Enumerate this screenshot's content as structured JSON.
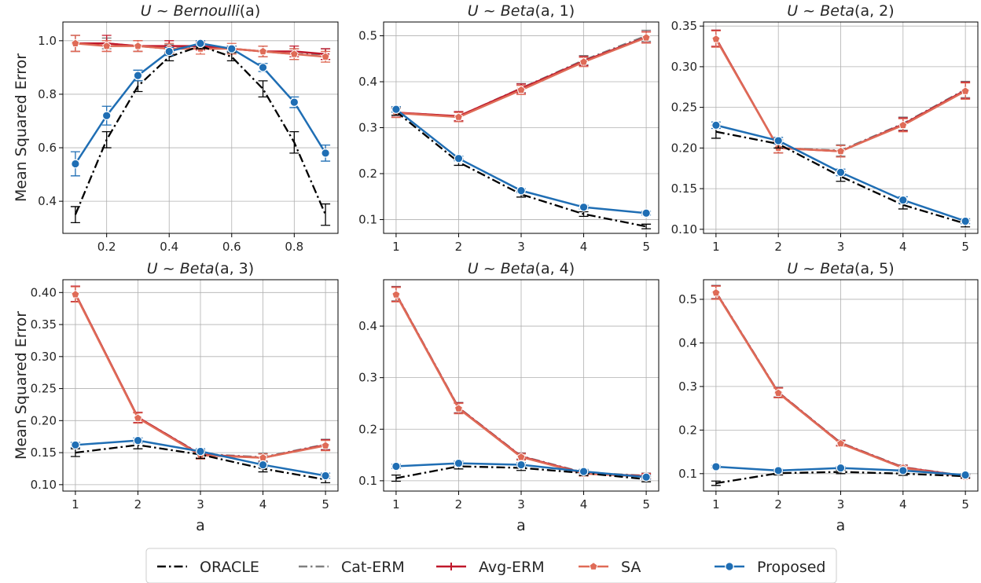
{
  "legend": {
    "placement": "bottom-center",
    "entries": [
      {
        "name": "ORACLE",
        "color": "#000000",
        "style": "dashdot",
        "marker": "none"
      },
      {
        "name": "Cat-ERM",
        "color": "#808080",
        "style": "dashdot",
        "marker": "none"
      },
      {
        "name": "Avg-ERM",
        "color": "#c0182b",
        "style": "solid",
        "marker": "plus"
      },
      {
        "name": "SA",
        "color": "#df6b57",
        "style": "solid",
        "marker": "pentagon"
      },
      {
        "name": "Proposed",
        "color": "#1f6eb4",
        "style": "solid",
        "marker": "circle"
      }
    ]
  },
  "chart_data": [
    {
      "type": "line",
      "title": "U ~ Bernoulli(a)",
      "title_parts": {
        "lhs": "U",
        "op": " ~ ",
        "dist": "Bernoulli",
        "args": "(a)"
      },
      "xlabel": "",
      "ylabel": "Mean Squared Error",
      "grid": true,
      "xlim": [
        0.06,
        0.94
      ],
      "ylim": [
        0.28,
        1.07
      ],
      "xticks": [
        0.2,
        0.4,
        0.6,
        0.8
      ],
      "xtick_labels": [
        "0.2",
        "0.4",
        "0.6",
        "0.8"
      ],
      "yticks": [
        0.4,
        0.6,
        0.8,
        1.0
      ],
      "ytick_labels": [
        "0.4",
        "0.6",
        "0.8",
        "1.0"
      ],
      "x": [
        0.1,
        0.2,
        0.3,
        0.4,
        0.5,
        0.6,
        0.7,
        0.8,
        0.9
      ],
      "series": [
        {
          "name": "ORACLE",
          "values": [
            0.35,
            0.63,
            0.83,
            0.94,
            0.98,
            0.94,
            0.82,
            0.62,
            0.35
          ],
          "err": [
            0.03,
            0.03,
            0.02,
            0.015,
            0.01,
            0.015,
            0.03,
            0.04,
            0.04
          ]
        },
        {
          "name": "Cat-ERM",
          "values": [
            0.99,
            0.99,
            0.98,
            0.97,
            0.98,
            0.97,
            0.96,
            0.95,
            0.95
          ],
          "err": [
            0.03,
            0.02,
            0.02,
            0.015,
            0.01,
            0.01,
            0.02,
            0.02,
            0.02
          ]
        },
        {
          "name": "Avg-ERM",
          "values": [
            0.99,
            0.99,
            0.98,
            0.98,
            0.98,
            0.97,
            0.96,
            0.96,
            0.95
          ],
          "err": [
            0.03,
            0.03,
            0.02,
            0.02,
            0.015,
            0.01,
            0.02,
            0.02,
            0.02
          ]
        },
        {
          "name": "SA",
          "values": [
            0.99,
            0.98,
            0.98,
            0.97,
            0.97,
            0.97,
            0.96,
            0.95,
            0.94
          ],
          "err": [
            0.03,
            0.02,
            0.02,
            0.02,
            0.02,
            0.02,
            0.02,
            0.02,
            0.02
          ]
        },
        {
          "name": "Proposed",
          "values": [
            0.54,
            0.72,
            0.87,
            0.96,
            0.99,
            0.97,
            0.9,
            0.77,
            0.58
          ],
          "err": [
            0.045,
            0.035,
            0.02,
            0.015,
            0.01,
            0.01,
            0.015,
            0.02,
            0.03
          ]
        }
      ]
    },
    {
      "type": "line",
      "title": "U ~ Beta(a, 1)",
      "title_parts": {
        "lhs": "U",
        "op": " ~ ",
        "dist": "Beta",
        "args": "(a, 1)"
      },
      "xlabel": "",
      "ylabel": "",
      "grid": true,
      "xlim": [
        0.8,
        5.2
      ],
      "ylim": [
        0.07,
        0.53
      ],
      "xticks": [
        1,
        2,
        3,
        4,
        5
      ],
      "xtick_labels": [
        "1",
        "2",
        "3",
        "4",
        "5"
      ],
      "yticks": [
        0.1,
        0.2,
        0.3,
        0.4,
        0.5
      ],
      "ytick_labels": [
        "0.1",
        "0.2",
        "0.3",
        "0.4",
        "0.5"
      ],
      "x": [
        1,
        2,
        3,
        4,
        5
      ],
      "series": [
        {
          "name": "ORACLE",
          "values": [
            0.335,
            0.225,
            0.155,
            0.112,
            0.085
          ],
          "err": [
            0.008,
            0.007,
            0.006,
            0.005,
            0.005
          ]
        },
        {
          "name": "Cat-ERM",
          "values": [
            0.333,
            0.325,
            0.386,
            0.447,
            0.5
          ],
          "err": [
            0.01,
            0.01,
            0.01,
            0.01,
            0.012
          ]
        },
        {
          "name": "Avg-ERM",
          "values": [
            0.333,
            0.325,
            0.385,
            0.445,
            0.497
          ],
          "err": [
            0.01,
            0.01,
            0.01,
            0.01,
            0.012
          ]
        },
        {
          "name": "SA",
          "values": [
            0.332,
            0.323,
            0.382,
            0.443,
            0.496
          ],
          "err": [
            0.01,
            0.01,
            0.01,
            0.01,
            0.012
          ]
        },
        {
          "name": "Proposed",
          "values": [
            0.34,
            0.233,
            0.163,
            0.127,
            0.114
          ],
          "err": [
            0.006,
            0.005,
            0.004,
            0.004,
            0.004
          ]
        }
      ]
    },
    {
      "type": "line",
      "title": "U ~ Beta(a, 2)",
      "title_parts": {
        "lhs": "U",
        "op": " ~ ",
        "dist": "Beta",
        "args": "(a, 2)"
      },
      "xlabel": "",
      "ylabel": "",
      "grid": true,
      "xlim": [
        0.8,
        5.2
      ],
      "ylim": [
        0.095,
        0.355
      ],
      "xticks": [
        1,
        2,
        3,
        4,
        5
      ],
      "xtick_labels": [
        "1",
        "2",
        "3",
        "4",
        "5"
      ],
      "yticks": [
        0.1,
        0.15,
        0.2,
        0.25,
        0.3,
        0.35
      ],
      "ytick_labels": [
        "0.10",
        "0.15",
        "0.20",
        "0.25",
        "0.30",
        "0.35"
      ],
      "x": [
        1,
        2,
        3,
        4,
        5
      ],
      "series": [
        {
          "name": "ORACLE",
          "values": [
            0.22,
            0.205,
            0.165,
            0.13,
            0.107
          ],
          "err": [
            0.008,
            0.005,
            0.006,
            0.005,
            0.004
          ]
        },
        {
          "name": "Cat-ERM",
          "values": [
            0.335,
            0.2,
            0.197,
            0.23,
            0.272
          ],
          "err": [
            0.01,
            0.006,
            0.007,
            0.008,
            0.01
          ]
        },
        {
          "name": "Avg-ERM",
          "values": [
            0.335,
            0.2,
            0.196,
            0.229,
            0.271
          ],
          "err": [
            0.01,
            0.006,
            0.007,
            0.008,
            0.01
          ]
        },
        {
          "name": "SA",
          "values": [
            0.334,
            0.2,
            0.196,
            0.228,
            0.27
          ],
          "err": [
            0.01,
            0.006,
            0.007,
            0.008,
            0.01
          ]
        },
        {
          "name": "Proposed",
          "values": [
            0.228,
            0.209,
            0.17,
            0.136,
            0.11
          ],
          "err": [
            0.004,
            0.004,
            0.004,
            0.004,
            0.003
          ]
        }
      ]
    },
    {
      "type": "line",
      "title": "U ~ Beta(a, 3)",
      "title_parts": {
        "lhs": "U",
        "op": " ~ ",
        "dist": "Beta",
        "args": "(a, 3)"
      },
      "xlabel": "a",
      "ylabel": "Mean Squared Error",
      "grid": true,
      "xlim": [
        0.8,
        5.2
      ],
      "ylim": [
        0.09,
        0.42
      ],
      "xticks": [
        1,
        2,
        3,
        4,
        5
      ],
      "xtick_labels": [
        "1",
        "2",
        "3",
        "4",
        "5"
      ],
      "yticks": [
        0.1,
        0.15,
        0.2,
        0.25,
        0.3,
        0.35,
        0.4
      ],
      "ytick_labels": [
        "0.10",
        "0.15",
        "0.20",
        "0.25",
        "0.30",
        "0.35",
        "0.40"
      ],
      "x": [
        1,
        2,
        3,
        4,
        5
      ],
      "series": [
        {
          "name": "ORACLE",
          "values": [
            0.15,
            0.162,
            0.147,
            0.125,
            0.108
          ],
          "err": [
            0.006,
            0.006,
            0.006,
            0.005,
            0.005
          ]
        },
        {
          "name": "Cat-ERM",
          "values": [
            0.398,
            0.205,
            0.148,
            0.143,
            0.163
          ],
          "err": [
            0.012,
            0.008,
            0.006,
            0.006,
            0.008
          ]
        },
        {
          "name": "Avg-ERM",
          "values": [
            0.398,
            0.205,
            0.147,
            0.142,
            0.162
          ],
          "err": [
            0.012,
            0.008,
            0.006,
            0.006,
            0.008
          ]
        },
        {
          "name": "SA",
          "values": [
            0.397,
            0.204,
            0.146,
            0.142,
            0.161
          ],
          "err": [
            0.012,
            0.008,
            0.006,
            0.006,
            0.008
          ]
        },
        {
          "name": "Proposed",
          "values": [
            0.162,
            0.169,
            0.152,
            0.131,
            0.114
          ],
          "err": [
            0.004,
            0.004,
            0.004,
            0.004,
            0.004
          ]
        }
      ]
    },
    {
      "type": "line",
      "title": "U ~ Beta(a, 4)",
      "title_parts": {
        "lhs": "U",
        "op": " ~ ",
        "dist": "Beta",
        "args": "(a, 4)"
      },
      "xlabel": "a",
      "ylabel": "",
      "grid": true,
      "xlim": [
        0.8,
        5.2
      ],
      "ylim": [
        0.08,
        0.49
      ],
      "xticks": [
        1,
        2,
        3,
        4,
        5
      ],
      "xtick_labels": [
        "1",
        "2",
        "3",
        "4",
        "5"
      ],
      "yticks": [
        0.1,
        0.2,
        0.3,
        0.4
      ],
      "ytick_labels": [
        "0.1",
        "0.2",
        "0.3",
        "0.4"
      ],
      "x": [
        1,
        2,
        3,
        4,
        5
      ],
      "series": [
        {
          "name": "ORACLE",
          "values": [
            0.105,
            0.128,
            0.125,
            0.115,
            0.103
          ],
          "err": [
            0.006,
            0.005,
            0.005,
            0.005,
            0.005
          ]
        },
        {
          "name": "Cat-ERM",
          "values": [
            0.463,
            0.242,
            0.148,
            0.116,
            0.11
          ],
          "err": [
            0.014,
            0.01,
            0.006,
            0.005,
            0.005
          ]
        },
        {
          "name": "Avg-ERM",
          "values": [
            0.462,
            0.241,
            0.147,
            0.115,
            0.109
          ],
          "err": [
            0.014,
            0.01,
            0.006,
            0.005,
            0.005
          ]
        },
        {
          "name": "SA",
          "values": [
            0.461,
            0.24,
            0.146,
            0.114,
            0.108
          ],
          "err": [
            0.014,
            0.01,
            0.006,
            0.005,
            0.005
          ]
        },
        {
          "name": "Proposed",
          "values": [
            0.128,
            0.134,
            0.131,
            0.118,
            0.107
          ],
          "err": [
            0.004,
            0.004,
            0.004,
            0.004,
            0.004
          ]
        }
      ]
    },
    {
      "type": "line",
      "title": "U ~ Beta(a, 5)",
      "title_parts": {
        "lhs": "U",
        "op": " ~ ",
        "dist": "Beta",
        "args": "(a, 5)"
      },
      "xlabel": "a",
      "ylabel": "",
      "grid": true,
      "xlim": [
        0.8,
        5.2
      ],
      "ylim": [
        0.06,
        0.545
      ],
      "xticks": [
        1,
        2,
        3,
        4,
        5
      ],
      "xtick_labels": [
        "1",
        "2",
        "3",
        "4",
        "5"
      ],
      "yticks": [
        0.1,
        0.2,
        0.3,
        0.4,
        0.5
      ],
      "ytick_labels": [
        "0.1",
        "0.2",
        "0.3",
        "0.4",
        "0.5"
      ],
      "x": [
        1,
        2,
        3,
        4,
        5
      ],
      "series": [
        {
          "name": "ORACLE",
          "values": [
            0.078,
            0.101,
            0.104,
            0.1,
            0.094
          ],
          "err": [
            0.005,
            0.004,
            0.004,
            0.004,
            0.004
          ]
        },
        {
          "name": "Cat-ERM",
          "values": [
            0.517,
            0.287,
            0.171,
            0.115,
            0.095
          ],
          "err": [
            0.015,
            0.011,
            0.006,
            0.005,
            0.004
          ]
        },
        {
          "name": "Avg-ERM",
          "values": [
            0.516,
            0.286,
            0.17,
            0.114,
            0.094
          ],
          "err": [
            0.015,
            0.011,
            0.006,
            0.005,
            0.004
          ]
        },
        {
          "name": "SA",
          "values": [
            0.515,
            0.285,
            0.169,
            0.113,
            0.093
          ],
          "err": [
            0.015,
            0.011,
            0.006,
            0.005,
            0.004
          ]
        },
        {
          "name": "Proposed",
          "values": [
            0.116,
            0.107,
            0.113,
            0.107,
            0.097
          ],
          "err": [
            0.003,
            0.003,
            0.003,
            0.003,
            0.003
          ]
        }
      ]
    }
  ]
}
